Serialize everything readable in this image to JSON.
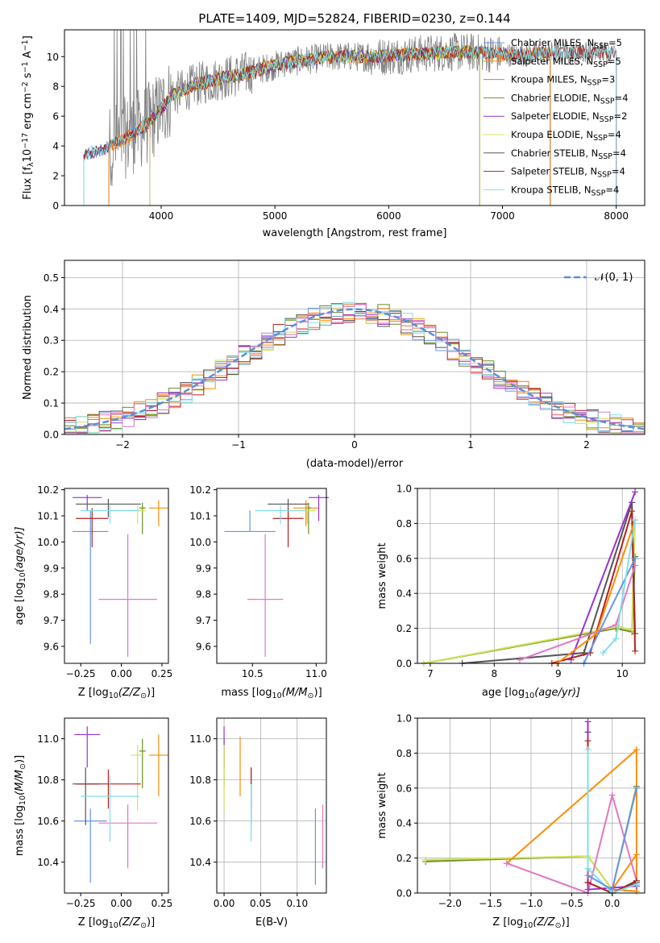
{
  "figure_title": "PLATE=1409, MJD=52824, FIBERID=0230, z=0.144",
  "colors": {
    "data": "#808080",
    "Chabrier MILES": "#6495ED",
    "Salpeter MILES": "#FF8C00",
    "Kroupa MILES": "#E07B2A",
    "Chabrier ELODIE": "#6B8E23",
    "Salpeter ELODIE": "#9932CC",
    "Kroupa ELODIE": "#D4E157",
    "Chabrier STELIB": "#555555",
    "Salpeter STELIB": "#B22222",
    "Kroupa STELIB": "#80DEEA",
    "extra_pink": "#E377C2",
    "normal_curve": "#5B8FD9"
  },
  "chart_data": [
    {
      "id": "spectrum",
      "type": "line",
      "xlabel": "wavelength [Angstrom, rest frame]",
      "ylabel": "Flux [f",
      "ylabel_parts": [
        "Flux [f",
        "λ",
        "10",
        "−17",
        " erg cm",
        "−2",
        " s",
        "−1",
        " A",
        "−1",
        "]"
      ],
      "xlim": [
        3150,
        8250
      ],
      "ylim": [
        0,
        11.8
      ],
      "xticks": [
        4000,
        5000,
        6000,
        7000,
        8000
      ],
      "yticks": [
        0,
        2,
        4,
        6,
        8,
        10
      ],
      "grid": false,
      "legend_position": "upper right",
      "legend": [
        {
          "label": "Chabrier MILES, N",
          "sub": "SSP",
          "tail": "=5",
          "color_key": "Chabrier MILES"
        },
        {
          "label": "Salpeter MILES, N",
          "sub": "SSP",
          "tail": "=5",
          "color_key": "Salpeter MILES"
        },
        {
          "label": "Kroupa MILES, N",
          "sub": "SSP",
          "tail": "=3",
          "color_key": "Kroupa MILES"
        },
        {
          "label": "Chabrier ELODIE, N",
          "sub": "SSP",
          "tail": "=4",
          "color_key": "Chabrier ELODIE"
        },
        {
          "label": "Salpeter ELODIE, N",
          "sub": "SSP",
          "tail": "=2",
          "color_key": "Salpeter ELODIE"
        },
        {
          "label": "Kroupa ELODIE, N",
          "sub": "SSP",
          "tail": "=4",
          "color_key": "Kroupa ELODIE"
        },
        {
          "label": "Chabrier STELIB, N",
          "sub": "SSP",
          "tail": "=4",
          "color_key": "Chabrier STELIB"
        },
        {
          "label": "Salpeter STELIB, N",
          "sub": "SSP",
          "tail": "=4",
          "color_key": "Salpeter STELIB"
        },
        {
          "label": "Kroupa STELIB, N",
          "sub": "SSP",
          "tail": "=4",
          "color_key": "Kroupa STELIB"
        }
      ],
      "continuum_x": [
        3320,
        3500,
        3700,
        3900,
        4000,
        4100,
        4300,
        4500,
        4700,
        4900,
        5100,
        5300,
        5500,
        5700,
        5900,
        6100,
        6300,
        6500,
        6700,
        6900,
        7100,
        7300,
        7600,
        7900,
        8100
      ],
      "continuum_y": [
        3.4,
        3.8,
        4.6,
        5.6,
        6.5,
        7.4,
        8.1,
        8.5,
        8.8,
        9.2,
        9.6,
        9.8,
        10.0,
        10.0,
        10.0,
        10.1,
        10.2,
        10.3,
        10.3,
        10.2,
        10.1,
        10.2,
        10.3,
        10.3,
        10.3
      ],
      "data_xrange": [
        3320,
        7950
      ],
      "model_xranges": {
        "Chabrier MILES": [
          3320,
          7420
        ],
        "Salpeter MILES": [
          3540,
          7420
        ],
        "Kroupa MILES": [
          3540,
          7420
        ],
        "Chabrier ELODIE": [
          3900,
          6800
        ],
        "Salpeter ELODIE": [
          3900,
          6800
        ],
        "Kroupa ELODIE": [
          3900,
          6800
        ],
        "Chabrier STELIB": [
          3320,
          8000
        ],
        "Salpeter STELIB": [
          3320,
          8000
        ],
        "Kroupa STELIB": [
          3320,
          8000
        ]
      }
    },
    {
      "id": "residuals",
      "type": "step",
      "xlabel": "(data-model)/error",
      "ylabel": "Normed distribution",
      "xlim": [
        -2.5,
        2.5
      ],
      "ylim": [
        0,
        0.555
      ],
      "xticks": [
        -2,
        -1,
        0,
        1,
        2
      ],
      "xtick_labels": [
        "−2",
        "−1",
        "0",
        "1",
        "2"
      ],
      "yticks": [
        0.0,
        0.1,
        0.2,
        0.3,
        0.4,
        0.5
      ],
      "grid": true,
      "bin_width": 0.1,
      "legend_position": "upper right",
      "legend": [
        {
          "label": "𝒩(0, 1)",
          "color_key": "normal_curve",
          "style": "dashed"
        }
      ]
    },
    {
      "id": "age-vs-Z",
      "type": "errorbar",
      "xlabel": "Z [log",
      "xlabel_parts": [
        "Z [log",
        "10",
        "(Z/Z",
        "⊙",
        ")]"
      ],
      "ylabel_parts": [
        "age  [log",
        "10",
        "(age/yr)]"
      ],
      "xlim": [
        -0.35,
        0.29
      ],
      "ylim": [
        9.535,
        10.205
      ],
      "xticks": [
        -0.25,
        0.0,
        0.25
      ],
      "xtick_labels": [
        "−0.25",
        "0.00",
        "0.25"
      ],
      "yticks": [
        9.6,
        9.7,
        9.8,
        9.9,
        10.0,
        10.1,
        10.2
      ],
      "grid": false,
      "points": [
        {
          "color_key": "Chabrier MILES",
          "x": -0.19,
          "xerr": 0.11,
          "y": 10.04,
          "yerr": [
            0.43,
            0.08
          ]
        },
        {
          "color_key": "Salpeter MILES",
          "x": 0.23,
          "xerr": 0.06,
          "y": 10.13,
          "yerr": [
            0.07,
            0.03
          ]
        },
        {
          "color_key": "extra_pink",
          "x": 0.04,
          "xerr": 0.18,
          "y": 9.78,
          "yerr": [
            0.22,
            0.25
          ]
        },
        {
          "color_key": "Chabrier ELODIE",
          "x": 0.13,
          "xerr": 0.02,
          "y": 10.13,
          "yerr": [
            0.1,
            0.02
          ]
        },
        {
          "color_key": "Salpeter ELODIE",
          "x": -0.21,
          "xerr": 0.09,
          "y": 10.17,
          "yerr": [
            0.05,
            0.01
          ]
        },
        {
          "color_key": "Kroupa ELODIE",
          "x": 0.1,
          "xerr": 0.05,
          "y": 10.12,
          "yerr": [
            0.05,
            0.02
          ]
        },
        {
          "color_key": "Chabrier STELIB",
          "x": -0.08,
          "xerr": 0.2,
          "y": 10.145,
          "yerr": [
            0.05,
            0.02
          ]
        },
        {
          "color_key": "Salpeter STELIB",
          "x": -0.18,
          "xerr": 0.1,
          "y": 10.09,
          "yerr": [
            0.11,
            0.04
          ]
        },
        {
          "color_key": "Kroupa STELIB",
          "x": -0.07,
          "xerr": 0.18,
          "y": 10.12,
          "yerr": [
            0.05,
            0.02
          ]
        }
      ]
    },
    {
      "id": "age-vs-mass",
      "type": "errorbar",
      "xlabel_parts": [
        "mass [log",
        "10",
        "(M/M",
        "⊙",
        ")]"
      ],
      "xlim": [
        10.22,
        11.08
      ],
      "ylim": [
        9.535,
        10.205
      ],
      "xticks": [
        10.5,
        11.0
      ],
      "xtick_labels": [
        "10.5",
        "11.0"
      ],
      "yticks": [
        9.6,
        9.7,
        9.8,
        9.9,
        10.0,
        10.1,
        10.2
      ],
      "grid": false,
      "points": [
        {
          "color_key": "Chabrier MILES",
          "x": 10.48,
          "xerr": 0.2,
          "y": 10.04,
          "yerr": [
            0.0,
            0.08
          ]
        },
        {
          "color_key": "Salpeter MILES",
          "x": 10.92,
          "xerr": 0.1,
          "y": 10.13,
          "yerr": [
            0.07,
            0.03
          ]
        },
        {
          "color_key": "extra_pink",
          "x": 10.6,
          "xerr": 0.14,
          "y": 9.78,
          "yerr": [
            0.22,
            0.25
          ]
        },
        {
          "color_key": "Chabrier ELODIE",
          "x": 10.94,
          "xerr": 0.02,
          "y": 10.13,
          "yerr": [
            0.1,
            0.02
          ]
        },
        {
          "color_key": "Salpeter ELODIE",
          "x": 11.02,
          "xerr": 0.08,
          "y": 10.17,
          "yerr": [
            0.09,
            0.01
          ]
        },
        {
          "color_key": "Kroupa ELODIE",
          "x": 10.93,
          "xerr": 0.06,
          "y": 10.12,
          "yerr": [
            0.05,
            0.02
          ]
        },
        {
          "color_key": "Chabrier STELIB",
          "x": 10.78,
          "xerr": 0.16,
          "y": 10.145,
          "yerr": [
            0.05,
            0.02
          ]
        },
        {
          "color_key": "Salpeter STELIB",
          "x": 10.78,
          "xerr": 0.12,
          "y": 10.09,
          "yerr": [
            0.11,
            0.04
          ]
        },
        {
          "color_key": "Kroupa STELIB",
          "x": 10.72,
          "xerr": 0.2,
          "y": 10.12,
          "yerr": [
            0.05,
            0.02
          ]
        }
      ]
    },
    {
      "id": "weight-vs-age",
      "type": "line",
      "xlabel_parts": [
        "age  [log",
        "10",
        "(age/yr)]"
      ],
      "ylabel": "mass weight",
      "xlim": [
        6.8,
        10.35
      ],
      "ylim": [
        0,
        1.0
      ],
      "xticks": [
        7,
        8,
        9,
        10
      ],
      "yticks": [
        0.0,
        0.2,
        0.4,
        0.6,
        0.8,
        1.0
      ],
      "grid": true,
      "series": [
        {
          "color_key": "Chabrier ELODIE",
          "x": [
            6.9,
            9.9,
            10.15,
            10.2
          ],
          "y": [
            0.0,
            0.2,
            0.18,
            0.61
          ]
        },
        {
          "color_key": "Kroupa ELODIE",
          "x": [
            6.9,
            9.95,
            10.15,
            10.2
          ],
          "y": [
            0.0,
            0.21,
            0.19,
            0.82
          ]
        },
        {
          "color_key": "Chabrier STELIB",
          "x": [
            7.5,
            9.4,
            10.15,
            10.2
          ],
          "y": [
            0.0,
            0.06,
            0.92,
            0.17
          ]
        },
        {
          "color_key": "Salpeter ELODIE",
          "x": [
            9.2,
            10.2
          ],
          "y": [
            0.02,
            0.98
          ]
        },
        {
          "color_key": "Salpeter STELIB",
          "x": [
            8.9,
            9.5,
            10.15,
            10.2
          ],
          "y": [
            0.0,
            0.06,
            0.87,
            0.07
          ]
        },
        {
          "color_key": "extra_pink",
          "x": [
            8.4,
            9.9,
            10.2
          ],
          "y": [
            0.02,
            0.22,
            0.56
          ]
        },
        {
          "color_key": "Salpeter MILES",
          "x": [
            8.98,
            9.6,
            10.2
          ],
          "y": [
            0.0,
            0.17,
            0.82
          ]
        },
        {
          "color_key": "Chabrier MILES",
          "x": [
            9.4,
            10.2
          ],
          "y": [
            0.0,
            0.6
          ]
        },
        {
          "color_key": "Kroupa STELIB",
          "x": [
            9.7,
            9.9,
            10.2
          ],
          "y": [
            0.06,
            0.14,
            0.82
          ]
        }
      ]
    },
    {
      "id": "mass-vs-Z",
      "type": "errorbar",
      "xlabel_parts": [
        "Z [log",
        "10",
        "(Z/Z",
        "⊙",
        ")]"
      ],
      "ylabel_parts": [
        "mass [log",
        "10",
        "(M/M",
        "⊙",
        ")]"
      ],
      "xlim": [
        -0.35,
        0.29
      ],
      "ylim": [
        10.25,
        11.1
      ],
      "xticks": [
        -0.25,
        0.0,
        0.25
      ],
      "xtick_labels": [
        "−0.25",
        "0.00",
        "0.25"
      ],
      "yticks": [
        10.4,
        10.6,
        10.8,
        11.0
      ],
      "grid": false,
      "points": [
        {
          "color_key": "Chabrier MILES",
          "x": -0.19,
          "xerr": 0.1,
          "y": 10.6,
          "yerr": [
            0.3,
            0.06
          ]
        },
        {
          "color_key": "Salpeter MILES",
          "x": 0.23,
          "xerr": 0.06,
          "y": 10.92,
          "yerr": [
            0.2,
            0.1
          ]
        },
        {
          "color_key": "extra_pink",
          "x": 0.04,
          "xerr": 0.18,
          "y": 10.59,
          "yerr": [
            0.22,
            0.09
          ]
        },
        {
          "color_key": "Chabrier ELODIE",
          "x": 0.13,
          "xerr": 0.02,
          "y": 10.94,
          "yerr": [
            0.18,
            0.06
          ]
        },
        {
          "color_key": "Salpeter ELODIE",
          "x": -0.21,
          "xerr": 0.08,
          "y": 11.02,
          "yerr": [
            0.16,
            0.04
          ]
        },
        {
          "color_key": "Kroupa ELODIE",
          "x": 0.1,
          "xerr": 0.04,
          "y": 10.92,
          "yerr": [
            0.27,
            0.05
          ]
        },
        {
          "color_key": "Chabrier STELIB",
          "x": -0.22,
          "xerr": 0.08,
          "y": 10.78,
          "yerr": [
            0.2,
            0.08
          ]
        },
        {
          "color_key": "Salpeter STELIB",
          "x": -0.08,
          "xerr": 0.2,
          "y": 10.78,
          "yerr": [
            0.12,
            0.07
          ]
        },
        {
          "color_key": "Kroupa STELIB",
          "x": -0.07,
          "xerr": 0.18,
          "y": 10.72,
          "yerr": [
            0.22,
            0.1
          ]
        }
      ]
    },
    {
      "id": "mass-vs-EBV",
      "type": "errorbar",
      "xlabel": "E(B-V)",
      "xlim": [
        -0.01,
        0.14
      ],
      "ylim": [
        10.25,
        11.1
      ],
      "xticks": [
        0.0,
        0.05,
        0.1
      ],
      "xtick_labels": [
        "0.00",
        "0.05",
        "0.10"
      ],
      "yticks": [
        10.4,
        10.6,
        10.8,
        11.0
      ],
      "grid": true,
      "points": [
        {
          "color_key": "Chabrier MILES",
          "x": 0.125,
          "xerr": 0.0,
          "y": 10.6,
          "yerr": [
            0.31,
            0.06
          ]
        },
        {
          "color_key": "Salpeter MILES",
          "x": 0.022,
          "xerr": 0.0,
          "y": 10.92,
          "yerr": [
            0.2,
            0.09
          ]
        },
        {
          "color_key": "extra_pink",
          "x": 0.135,
          "xerr": 0.0,
          "y": 10.59,
          "yerr": [
            0.22,
            0.09
          ]
        },
        {
          "color_key": "Chabrier ELODIE",
          "x": 0.0,
          "xerr": 0.0,
          "y": 10.94,
          "yerr": [
            0.18,
            0.06
          ]
        },
        {
          "color_key": "Salpeter ELODIE",
          "x": 0.0,
          "xerr": 0.0,
          "y": 11.02,
          "yerr": [
            0.16,
            0.04
          ]
        },
        {
          "color_key": "Kroupa ELODIE",
          "x": 0.0,
          "xerr": 0.0,
          "y": 10.92,
          "yerr": [
            0.27,
            0.05
          ]
        },
        {
          "color_key": "Chabrier STELIB",
          "x": 0.037,
          "xerr": 0.0,
          "y": 10.78,
          "yerr": [
            0.2,
            0.08
          ]
        },
        {
          "color_key": "Salpeter STELIB",
          "x": 0.037,
          "xerr": 0.0,
          "y": 10.78,
          "yerr": [
            0.12,
            0.08
          ]
        },
        {
          "color_key": "Kroupa STELIB",
          "x": 0.037,
          "xerr": 0.0,
          "y": 10.72,
          "yerr": [
            0.22,
            0.06
          ]
        }
      ]
    },
    {
      "id": "weight-vs-Z",
      "type": "line",
      "xlabel_parts": [
        "Z [log",
        "10",
        "(Z/Z",
        "⊙",
        ")]"
      ],
      "ylabel": "mass weight",
      "xlim": [
        -2.4,
        0.4
      ],
      "ylim": [
        0,
        1.0
      ],
      "xticks": [
        -2.0,
        -1.5,
        -1.0,
        -0.5,
        0.0
      ],
      "xtick_labels": [
        "−2.0",
        "−1.5",
        "−1.0",
        "−0.5",
        "0.0"
      ],
      "yticks": [
        0.0,
        0.2,
        0.4,
        0.6,
        0.8,
        1.0
      ],
      "grid": true,
      "series": [
        {
          "color_key": "Chabrier ELODIE",
          "x": [
            -2.3,
            -0.3,
            0.0,
            0.3
          ],
          "y": [
            0.18,
            0.21,
            0.02,
            0.61
          ]
        },
        {
          "color_key": "Kroupa ELODIE",
          "x": [
            -2.3,
            -0.3,
            0.0,
            0.3
          ],
          "y": [
            0.19,
            0.21,
            0.02,
            0.6
          ]
        },
        {
          "color_key": "Salpeter MILES",
          "x": [
            -1.3,
            0.3,
            0.3,
            0.0,
            0.3
          ],
          "y": [
            0.17,
            0.82,
            0.01,
            0.02,
            0.22
          ]
        },
        {
          "color_key": "extra_pink",
          "x": [
            -1.3,
            -0.3,
            0.0,
            0.3
          ],
          "y": [
            0.17,
            0.0,
            0.56,
            0.07
          ]
        },
        {
          "color_key": "Chabrier STELIB",
          "x": [
            -0.3,
            -0.3,
            0.0,
            0.3
          ],
          "y": [
            0.92,
            0.06,
            0.0,
            0.06
          ]
        },
        {
          "color_key": "Salpeter ELODIE",
          "x": [
            -0.3,
            -0.3,
            0.3
          ],
          "y": [
            0.98,
            0.02,
            0.04
          ]
        },
        {
          "color_key": "Salpeter STELIB",
          "x": [
            -0.3,
            -0.3,
            0.0,
            0.3
          ],
          "y": [
            0.87,
            0.06,
            0.0,
            0.07
          ]
        },
        {
          "color_key": "Kroupa STELIB",
          "x": [
            -0.3,
            -0.3,
            0.0,
            0.3
          ],
          "y": [
            0.82,
            0.14,
            0.0,
            0.05
          ]
        },
        {
          "color_key": "Chabrier MILES",
          "x": [
            -0.3,
            0.0,
            0.3
          ],
          "y": [
            0.1,
            0.02,
            0.6
          ]
        }
      ]
    }
  ]
}
